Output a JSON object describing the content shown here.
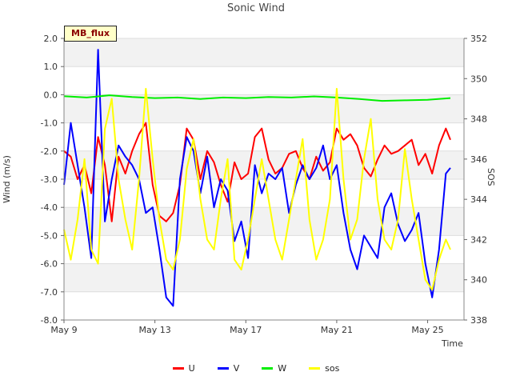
{
  "chart_data": {
    "type": "line",
    "title": "Sonic Wind",
    "badge": "MB_flux",
    "xlabel": "Time",
    "ylabel": "Wind (m/s)",
    "y2label": "SOS",
    "x_ticks": [
      "May 9",
      "May 13",
      "May 17",
      "May 21",
      "May 25"
    ],
    "x_tick_days": [
      0,
      4,
      8,
      12,
      16
    ],
    "xlim_days": [
      0,
      17.6
    ],
    "ylim": [
      -8,
      2
    ],
    "y_ticks": [
      "2.0",
      "1.0",
      "0.0",
      "-1.0",
      "-2.0",
      "-3.0",
      "-4.0",
      "-5.0",
      "-6.0",
      "-7.0",
      "-8.0"
    ],
    "y2lim": [
      338,
      352
    ],
    "y2_ticks": [
      "352",
      "350",
      "348",
      "346",
      "344",
      "342",
      "340",
      "338"
    ],
    "series": [
      {
        "name": "U",
        "color": "#ff0000",
        "axis": "left",
        "x": [
          0,
          0.3,
          0.6,
          0.9,
          1.2,
          1.5,
          1.8,
          2.1,
          2.4,
          2.7,
          3.0,
          3.3,
          3.6,
          3.9,
          4.2,
          4.5,
          4.8,
          5.1,
          5.4,
          5.7,
          6.0,
          6.3,
          6.6,
          6.9,
          7.2,
          7.5,
          7.8,
          8.1,
          8.4,
          8.7,
          9.0,
          9.3,
          9.6,
          9.9,
          10.2,
          10.5,
          10.8,
          11.1,
          11.4,
          11.7,
          12.0,
          12.3,
          12.6,
          12.9,
          13.2,
          13.5,
          13.8,
          14.1,
          14.4,
          14.7,
          15.0,
          15.3,
          15.6,
          15.9,
          16.2,
          16.5,
          16.8,
          17.0
        ],
        "values": [
          -2.0,
          -2.2,
          -3.0,
          -2.5,
          -3.5,
          -1.5,
          -2.5,
          -4.5,
          -2.2,
          -2.8,
          -2.0,
          -1.4,
          -1.0,
          -3.2,
          -4.3,
          -4.5,
          -4.2,
          -3.2,
          -1.2,
          -1.6,
          -3.0,
          -2.0,
          -2.4,
          -3.2,
          -3.8,
          -2.4,
          -3.0,
          -2.8,
          -1.5,
          -1.2,
          -2.3,
          -2.8,
          -2.6,
          -2.1,
          -2.0,
          -2.6,
          -3.0,
          -2.2,
          -2.7,
          -2.4,
          -1.2,
          -1.6,
          -1.4,
          -1.8,
          -2.6,
          -2.9,
          -2.3,
          -1.8,
          -2.1,
          -2.0,
          -1.8,
          -1.6,
          -2.5,
          -2.1,
          -2.8,
          -1.8,
          -1.2,
          -1.6
        ]
      },
      {
        "name": "V",
        "color": "#0000ff",
        "axis": "left",
        "x": [
          0,
          0.3,
          0.6,
          0.9,
          1.2,
          1.5,
          1.8,
          2.1,
          2.4,
          2.7,
          3.0,
          3.3,
          3.6,
          3.9,
          4.2,
          4.5,
          4.8,
          5.1,
          5.4,
          5.7,
          6.0,
          6.3,
          6.6,
          6.9,
          7.2,
          7.5,
          7.8,
          8.1,
          8.4,
          8.7,
          9.0,
          9.3,
          9.6,
          9.9,
          10.2,
          10.5,
          10.8,
          11.1,
          11.4,
          11.7,
          12.0,
          12.3,
          12.6,
          12.9,
          13.2,
          13.5,
          13.8,
          14.1,
          14.4,
          14.7,
          15.0,
          15.3,
          15.6,
          15.9,
          16.2,
          16.5,
          16.8,
          17.0
        ],
        "values": [
          -3.2,
          -1.0,
          -2.5,
          -4.0,
          -5.8,
          1.6,
          -4.5,
          -3.0,
          -1.8,
          -2.2,
          -2.5,
          -3.0,
          -4.2,
          -4.0,
          -5.5,
          -7.2,
          -7.5,
          -3.0,
          -1.5,
          -2.0,
          -3.5,
          -2.2,
          -4.0,
          -3.0,
          -3.4,
          -5.2,
          -4.5,
          -5.8,
          -2.5,
          -3.5,
          -2.8,
          -3.0,
          -2.6,
          -4.2,
          -3.2,
          -2.5,
          -3.0,
          -2.6,
          -1.8,
          -3.0,
          -2.5,
          -4.2,
          -5.5,
          -6.2,
          -5.0,
          -5.4,
          -5.8,
          -4.0,
          -3.5,
          -4.6,
          -5.2,
          -4.8,
          -4.2,
          -6.0,
          -7.2,
          -5.5,
          -2.8,
          -2.6
        ]
      },
      {
        "name": "W",
        "color": "#00ee00",
        "axis": "left",
        "x": [
          0,
          1,
          2,
          3,
          4,
          5,
          6,
          7,
          8,
          9,
          10,
          11,
          12,
          13,
          14,
          15,
          16,
          17
        ],
        "values": [
          -0.05,
          -0.1,
          -0.02,
          -0.08,
          -0.12,
          -0.1,
          -0.15,
          -0.1,
          -0.12,
          -0.08,
          -0.1,
          -0.06,
          -0.1,
          -0.15,
          -0.22,
          -0.2,
          -0.18,
          -0.12
        ]
      },
      {
        "name": "sos",
        "color": "#ffff00",
        "axis": "right",
        "x": [
          0,
          0.3,
          0.6,
          0.9,
          1.2,
          1.5,
          1.8,
          2.1,
          2.4,
          2.7,
          3.0,
          3.3,
          3.6,
          3.9,
          4.2,
          4.5,
          4.8,
          5.1,
          5.4,
          5.7,
          6.0,
          6.3,
          6.6,
          6.9,
          7.2,
          7.5,
          7.8,
          8.1,
          8.4,
          8.7,
          9.0,
          9.3,
          9.6,
          9.9,
          10.2,
          10.5,
          10.8,
          11.1,
          11.4,
          11.7,
          12.0,
          12.3,
          12.6,
          12.9,
          13.2,
          13.5,
          13.8,
          14.1,
          14.4,
          14.7,
          15.0,
          15.3,
          15.6,
          15.9,
          16.2,
          16.5,
          16.8,
          17.0
        ],
        "values": [
          342.5,
          341,
          343,
          346,
          341.5,
          340.8,
          347.5,
          349,
          345,
          343,
          341.5,
          345,
          349.5,
          346,
          343,
          341,
          340.5,
          342,
          345.5,
          347,
          344,
          342,
          341.5,
          344,
          346,
          341,
          340.5,
          342,
          344,
          346,
          344,
          342,
          341,
          343,
          345,
          347,
          343,
          341,
          342,
          344,
          349.5,
          345,
          342,
          343,
          346,
          348,
          344,
          342,
          341.5,
          343,
          346.5,
          344,
          342,
          340,
          339.5,
          341,
          342,
          341.5
        ]
      }
    ]
  }
}
